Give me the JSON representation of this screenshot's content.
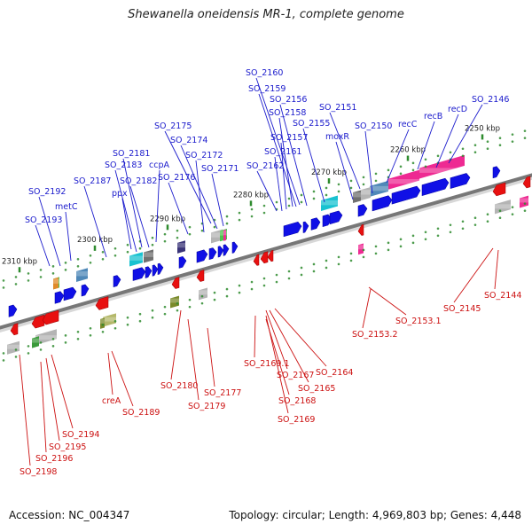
{
  "title": "Shewanella oneidensis MR-1, complete genome",
  "footer": {
    "accession": "Accession: NC_004347",
    "summary": "Topology: circular; Length: 4,969,803 bp; Genes: 4,448"
  },
  "colors": {
    "forward_label": "#1a1acc",
    "reverse_label": "#cc1111",
    "backbone": "#777777",
    "tick": "#2e8b2e"
  },
  "ticks": [
    "2310 kbp",
    "2300 kbp",
    "2290 kbp",
    "2280 kbp",
    "2270 kbp",
    "2260 kbp",
    "2250 kbp"
  ],
  "forward_labels": [
    "SO_2160",
    "SO_2159",
    "SO_2156",
    "SO_2158",
    "SO_2151",
    "SO_2146",
    "SO_2155",
    "SO_2157",
    "SO_2150",
    "recC",
    "recB",
    "recD",
    "moxR",
    "SO_2175",
    "SO_2174",
    "SO_2161",
    "SO_2181",
    "SO_2172",
    "SO_2183",
    "ccpA",
    "SO_2171",
    "SO_2162",
    "SO_2187",
    "SO_2182",
    "SO_2176",
    "SO_2192",
    "ppx",
    "metC",
    "SO_2193"
  ],
  "reverse_labels": [
    "SO_2144",
    "SO_2145",
    "SO_2153.1",
    "SO_2153.2",
    "SO_2169.1",
    "SO_2164",
    "SO_2167",
    "SO_2180",
    "SO_2165",
    "SO_2177",
    "SO_2168",
    "SO_2179",
    "creA",
    "SO_2189",
    "SO_2169",
    "SO_2194",
    "SO_2195",
    "SO_2196",
    "SO_2198"
  ]
}
